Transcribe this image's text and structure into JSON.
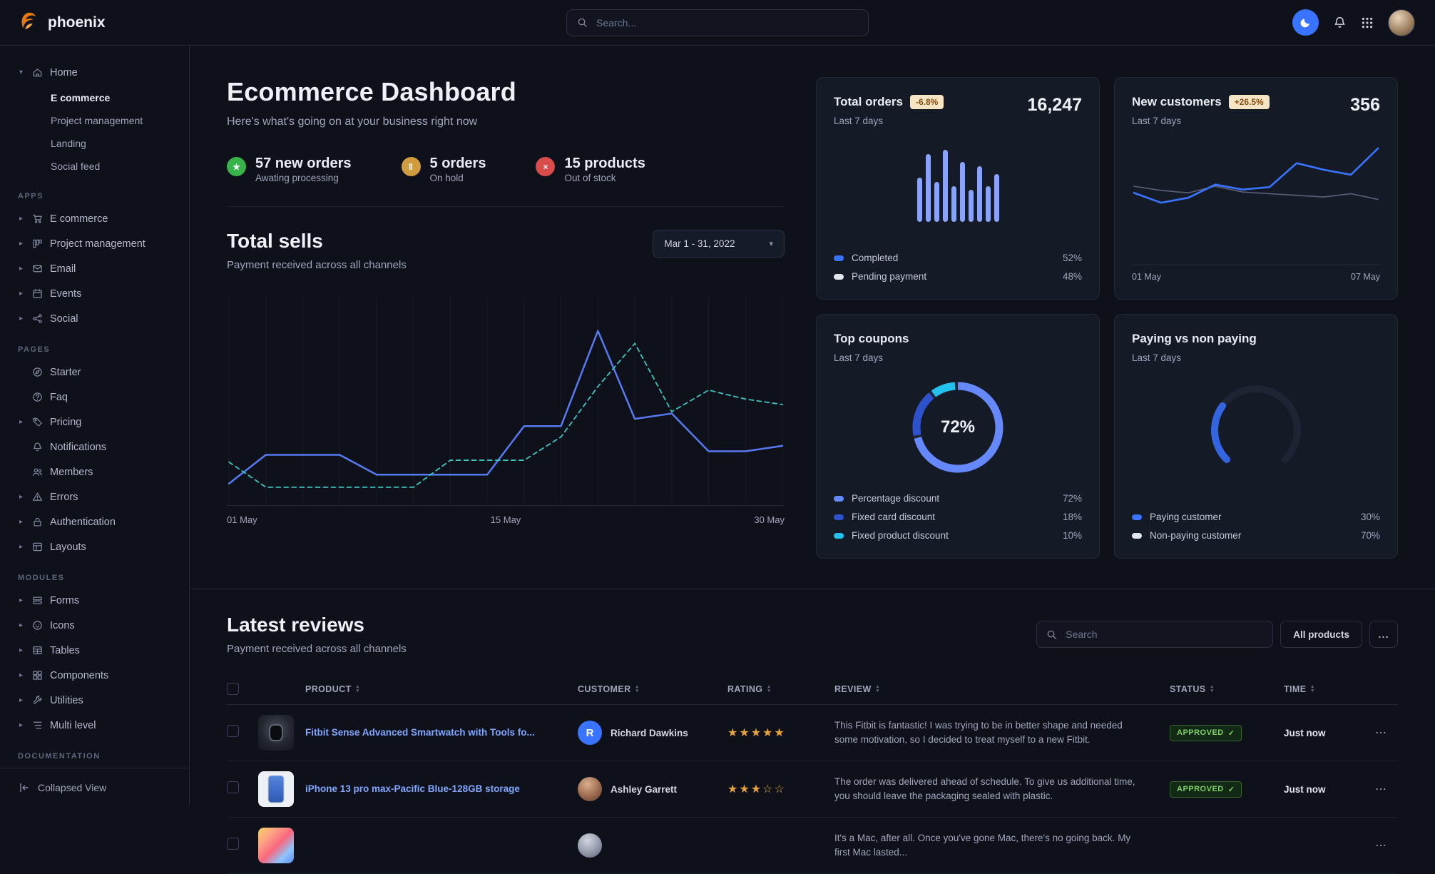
{
  "brand": {
    "name": "phoenix"
  },
  "navbar": {
    "search_placeholder": "Search..."
  },
  "sidebar": {
    "home": {
      "label": "Home",
      "children": [
        {
          "label": "E commerce",
          "active": true
        },
        {
          "label": "Project management"
        },
        {
          "label": "Landing"
        },
        {
          "label": "Social feed"
        }
      ]
    },
    "sections": [
      {
        "label": "APPS",
        "items": [
          {
            "label": "E commerce",
            "icon": "cart",
            "chevron": true
          },
          {
            "label": "Project management",
            "icon": "kanban",
            "chevron": true
          },
          {
            "label": "Email",
            "icon": "email",
            "chevron": true
          },
          {
            "label": "Events",
            "icon": "calendar",
            "chevron": true
          },
          {
            "label": "Social",
            "icon": "share",
            "chevron": true
          }
        ]
      },
      {
        "label": "PAGES",
        "items": [
          {
            "label": "Starter",
            "icon": "compass",
            "chevron": false
          },
          {
            "label": "Faq",
            "icon": "question",
            "chevron": false
          },
          {
            "label": "Pricing",
            "icon": "tag",
            "chevron": true
          },
          {
            "label": "Notifications",
            "icon": "bell",
            "chevron": false
          },
          {
            "label": "Members",
            "icon": "users",
            "chevron": false
          },
          {
            "label": "Errors",
            "icon": "warning",
            "chevron": true
          },
          {
            "label": "Authentication",
            "icon": "lock",
            "chevron": true
          },
          {
            "label": "Layouts",
            "icon": "layout",
            "chevron": true
          }
        ]
      },
      {
        "label": "MODULES",
        "items": [
          {
            "label": "Forms",
            "icon": "forms",
            "chevron": true
          },
          {
            "label": "Icons",
            "icon": "icons",
            "chevron": true
          },
          {
            "label": "Tables",
            "icon": "tables",
            "chevron": true
          },
          {
            "label": "Components",
            "icon": "components",
            "chevron": true
          },
          {
            "label": "Utilities",
            "icon": "utilities",
            "chevron": true
          },
          {
            "label": "Multi level",
            "icon": "multilevel",
            "chevron": true
          }
        ]
      },
      {
        "label": "DOCUMENTATION",
        "items": []
      }
    ],
    "collapse_label": "Collapsed View"
  },
  "header": {
    "title": "Ecommerce Dashboard",
    "subtitle": "Here's what's going on at your business right now"
  },
  "stats": [
    {
      "icon": "star-icon",
      "glyph": "★",
      "color": "#37b34a",
      "value": "57 new orders",
      "sub": "Awating processing"
    },
    {
      "icon": "pause-icon",
      "glyph": "‖",
      "color": "#cf9c3f",
      "value": "5 orders",
      "sub": "On hold"
    },
    {
      "icon": "close-icon",
      "glyph": "×",
      "color": "#d94c4c",
      "value": "15 products",
      "sub": "Out of stock"
    }
  ],
  "total_sells": {
    "title": "Total sells",
    "subtitle": "Payment received across all channels",
    "date_range": "Mar 1 - 31, 2022"
  },
  "cards": {
    "total_orders": {
      "title": "Total orders",
      "badge": "-6.8%",
      "sub": "Last 7 days",
      "value": "16,247",
      "legend": [
        {
          "label": "Completed",
          "value": "52%",
          "color": "#3874ff"
        },
        {
          "label": "Pending payment",
          "value": "48%",
          "color": "#e3e6ed"
        }
      ]
    },
    "new_customers": {
      "title": "New customers",
      "badge": "+26.5%",
      "sub": "Last 7 days",
      "value": "356"
    },
    "top_coupons": {
      "title": "Top coupons",
      "sub": "Last 7 days",
      "legend": [
        {
          "label": "Percentage discount",
          "value": "72%",
          "color": "#6589fb"
        },
        {
          "label": "Fixed card discount",
          "value": "18%",
          "color": "#2e52cc"
        },
        {
          "label": "Fixed product discount",
          "value": "10%",
          "color": "#23c1ee"
        }
      ]
    },
    "paying": {
      "title": "Paying vs non paying",
      "sub": "Last 7 days",
      "legend": [
        {
          "label": "Paying customer",
          "value": "30%",
          "color": "#3874ff"
        },
        {
          "label": "Non-paying customer",
          "value": "70%",
          "color": "#e3e6ed"
        }
      ]
    }
  },
  "chart_data": [
    {
      "id": "total-sells",
      "type": "line",
      "title": "Total sells",
      "x_labels": [
        "01 May",
        "15 May",
        "30 May"
      ],
      "ylim": [
        0,
        100
      ],
      "grid": "vertical",
      "series": [
        {
          "name": "current",
          "style": "solid",
          "color": "#567af2",
          "values": [
            8,
            24,
            24,
            24,
            13,
            13,
            13,
            13,
            40,
            40,
            93,
            44,
            47,
            26,
            26,
            29
          ]
        },
        {
          "name": "previous",
          "style": "dashed",
          "color": "#3cc5c0",
          "values": [
            20,
            6,
            6,
            6,
            6,
            6,
            21,
            21,
            21,
            34,
            62,
            86,
            48,
            60,
            55,
            52
          ]
        }
      ]
    },
    {
      "id": "total-orders",
      "type": "bar",
      "title": "Total orders",
      "color": "#8aa3f8",
      "values": [
        55,
        85,
        50,
        90,
        45,
        75,
        40,
        70,
        45,
        60
      ],
      "ylim": [
        0,
        100
      ]
    },
    {
      "id": "new-customers",
      "type": "line",
      "title": "New customers",
      "x_labels": [
        "01 May",
        "07 May"
      ],
      "ylim": [
        0,
        100
      ],
      "series": [
        {
          "name": "previous",
          "style": "solid",
          "color": "#565c72",
          "values": [
            50,
            45,
            42,
            50,
            43,
            41,
            39,
            37,
            41,
            34
          ]
        },
        {
          "name": "current",
          "style": "solid",
          "color": "#3874ff",
          "values": [
            42,
            30,
            36,
            52,
            46,
            49,
            78,
            70,
            64,
            96
          ]
        }
      ]
    },
    {
      "id": "top-coupons",
      "type": "pie",
      "title": "Top coupons",
      "center_label": "72%",
      "slices": [
        {
          "label": "Percentage discount",
          "value": 72,
          "color": "#6589fb"
        },
        {
          "label": "Fixed card discount",
          "value": 18,
          "color": "#2e52cc"
        },
        {
          "label": "Fixed product discount",
          "value": 10,
          "color": "#23c1ee"
        }
      ]
    },
    {
      "id": "paying-gauge",
      "type": "gauge",
      "title": "Paying vs non paying",
      "value": 30,
      "max": 100,
      "color": "#3465e0",
      "segments": [
        {
          "label": "Paying customer",
          "value": 30,
          "color": "#3874ff"
        },
        {
          "label": "Non-paying customer",
          "value": 70,
          "color": "#e3e6ed"
        }
      ]
    }
  ],
  "reviews": {
    "title": "Latest reviews",
    "subtitle": "Payment received across all channels",
    "search_placeholder": "Search",
    "filter_label": "All products",
    "more_label": "...",
    "columns": [
      {
        "label": "PRODUCT"
      },
      {
        "label": "CUSTOMER"
      },
      {
        "label": "RATING"
      },
      {
        "label": "REVIEW"
      },
      {
        "label": "STATUS"
      },
      {
        "label": "TIME"
      }
    ],
    "rows": [
      {
        "product": "Fitbit Sense Advanced Smartwatch with Tools fo...",
        "thumb": "watch",
        "customer": "Richard Dawkins",
        "avatar": "initial",
        "avatar_text": "R",
        "avatar_color": "#3874ff",
        "rating": 5,
        "review": "This Fitbit is fantastic! I was trying to be in better shape and needed some motivation, so I decided to treat myself to a new Fitbit.",
        "status": "APPROVED",
        "time": "Just now"
      },
      {
        "product": "iPhone 13 pro max-Pacific Blue-128GB storage",
        "thumb": "phone",
        "customer": "Ashley Garrett",
        "avatar": "photo-female",
        "avatar_text": "",
        "avatar_color": "",
        "rating": 3,
        "review": "The order was delivered ahead of schedule. To give us additional time, you should leave the packaging sealed with plastic.",
        "status": "APPROVED",
        "time": "Just now"
      },
      {
        "product": "",
        "thumb": "laptop",
        "customer": "",
        "avatar": "photo",
        "avatar_text": "",
        "avatar_color": "",
        "rating": 0,
        "review": "It's a Mac, after all. Once you've gone Mac, there's no going back. My first Mac lasted...",
        "status": "",
        "time": ""
      }
    ]
  }
}
